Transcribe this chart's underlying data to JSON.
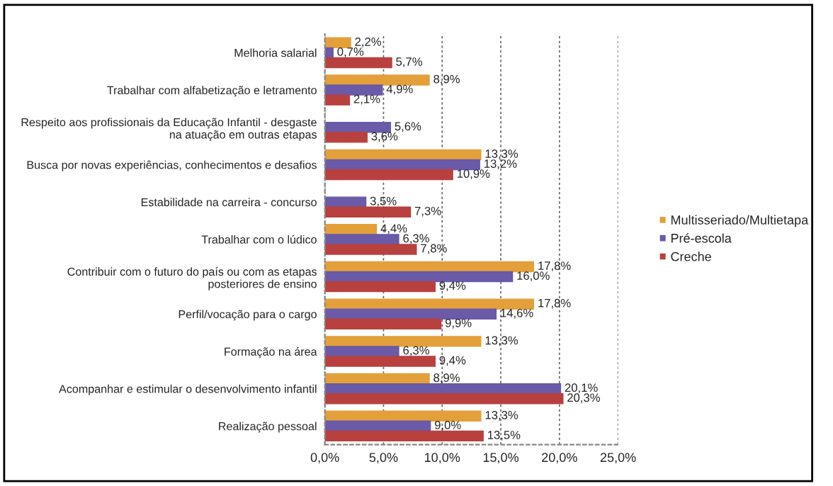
{
  "chart_data": {
    "type": "bar",
    "orientation": "horizontal",
    "categories": [
      "Melhoria salarial",
      "Trabalhar com alfabetização e letramento",
      "Respeito aos profissionais da Educação Infantil - desgaste\nna atuação em outras etapas",
      "Busca por novas experiências, conhecimentos e desafios",
      "Estabilidade na carreira - concurso",
      "Trabalhar com o lúdico",
      "Contribuir com o futuro do país ou com as etapas\nposteriores de ensino",
      "Perfil/vocação para o cargo",
      "Formação na área",
      "Acompanhar e estimular o desenvolvimento infantil",
      "Realização pessoal"
    ],
    "series": [
      {
        "name": "Multisseriado/Multietapa",
        "color": "#e3a03a",
        "values": [
          2.2,
          8.9,
          null,
          13.3,
          null,
          4.4,
          17.8,
          17.8,
          13.3,
          8.9,
          13.3
        ],
        "value_labels": [
          "2,2%",
          "8,9%",
          null,
          "13,3%",
          null,
          "4,4%",
          "17,8%",
          "17,8%",
          "13,3%",
          "8,9%",
          "13,3%"
        ]
      },
      {
        "name": "Pré-escola",
        "color": "#6a5aa8",
        "values": [
          0.7,
          4.9,
          5.6,
          13.2,
          3.5,
          6.3,
          16.0,
          14.6,
          6.3,
          20.1,
          9.0
        ],
        "value_labels": [
          "0,7%",
          "4,9%",
          "5,6%",
          "13,2%",
          "3,5%",
          "6,3%",
          "16,0%",
          "14,6%",
          "6,3%",
          "20,1%",
          "9,0%"
        ]
      },
      {
        "name": "Creche",
        "color": "#b8413f",
        "values": [
          5.7,
          2.1,
          3.6,
          10.9,
          7.3,
          7.8,
          9.4,
          9.9,
          9.4,
          20.3,
          13.5
        ],
        "value_labels": [
          "5,7%",
          "2,1%",
          "3,6%",
          "10,9%",
          "7,3%",
          "7,8%",
          "9,4%",
          "9,9%",
          "9,4%",
          "20,3%",
          "13,5%"
        ]
      }
    ],
    "xlim": [
      0,
      25
    ],
    "xticks": [
      {
        "value": 0,
        "label": "0,0%"
      },
      {
        "value": 5,
        "label": "5,0%"
      },
      {
        "value": 10,
        "label": "10,0%"
      },
      {
        "value": 15,
        "label": "15,0%"
      },
      {
        "value": 20,
        "label": "20,0%"
      },
      {
        "value": 25,
        "label": "25,0%"
      }
    ],
    "grid": "x",
    "legend": "right"
  }
}
